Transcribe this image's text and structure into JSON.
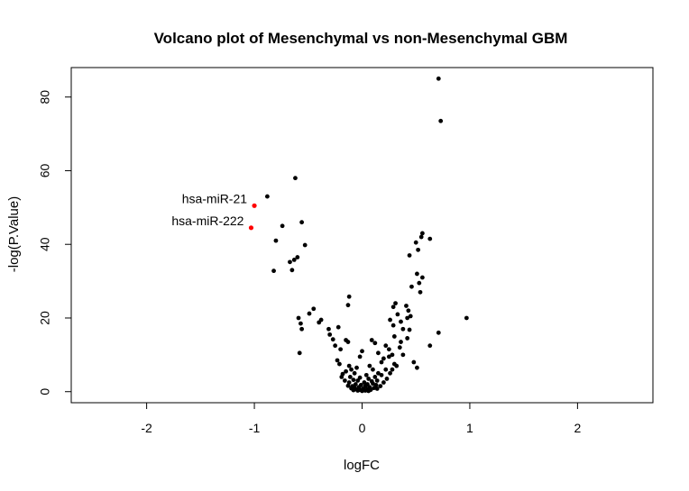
{
  "chart_data": {
    "type": "scatter",
    "title": "Volcano plot of Mesenchymal vs non-Mesenchymal GBM",
    "xlabel": "logFC",
    "ylabel": "-log(P.Value)",
    "xlim": [
      -2.7,
      2.7
    ],
    "ylim": [
      -3,
      88
    ],
    "xticks": [
      "-2",
      "-1",
      "0",
      "1",
      "2"
    ],
    "yticks": [
      "0",
      "20",
      "40",
      "60",
      "80"
    ],
    "grid": false,
    "highlight_color": "#ff0000",
    "point_color": "#000000",
    "points": [
      [
        0.71,
        85.0
      ],
      [
        0.73,
        73.5
      ],
      [
        -0.62,
        58.0
      ],
      [
        -0.88,
        53.0
      ],
      [
        -0.56,
        46.0
      ],
      [
        -0.74,
        45.0
      ],
      [
        0.56,
        43.0
      ],
      [
        0.55,
        42.0
      ],
      [
        0.63,
        41.5
      ],
      [
        0.5,
        40.5
      ],
      [
        -0.8,
        41.0
      ],
      [
        -0.53,
        39.8
      ],
      [
        0.52,
        38.5
      ],
      [
        0.44,
        37.0
      ],
      [
        -0.6,
        36.5
      ],
      [
        -0.63,
        35.8
      ],
      [
        -0.67,
        35.2
      ],
      [
        -0.65,
        33.0
      ],
      [
        -0.82,
        32.8
      ],
      [
        0.51,
        32.0
      ],
      [
        0.56,
        31.0
      ],
      [
        0.53,
        29.5
      ],
      [
        0.46,
        28.5
      ],
      [
        0.54,
        27.0
      ],
      [
        -0.12,
        25.8
      ],
      [
        0.31,
        24.0
      ],
      [
        -0.13,
        23.5
      ],
      [
        -0.45,
        22.5
      ],
      [
        0.29,
        23.0
      ],
      [
        0.41,
        23.3
      ],
      [
        0.43,
        22.0
      ],
      [
        -0.49,
        21.2
      ],
      [
        0.33,
        21.0
      ],
      [
        0.45,
        20.5
      ],
      [
        0.42,
        20.0
      ],
      [
        0.97,
        20.0
      ],
      [
        0.26,
        19.5
      ],
      [
        -0.59,
        20.0
      ],
      [
        0.36,
        19.0
      ],
      [
        -0.57,
        18.5
      ],
      [
        -0.4,
        18.8
      ],
      [
        -0.38,
        19.5
      ],
      [
        0.29,
        18.0
      ],
      [
        0.71,
        16.0
      ],
      [
        -0.56,
        17.0
      ],
      [
        -0.31,
        17.0
      ],
      [
        -0.22,
        17.5
      ],
      [
        0.38,
        17.0
      ],
      [
        0.44,
        16.8
      ],
      [
        0.3,
        15.0
      ],
      [
        -0.3,
        15.5
      ],
      [
        -0.27,
        14.2
      ],
      [
        0.42,
        14.5
      ],
      [
        -0.15,
        14.0
      ],
      [
        -0.13,
        13.5
      ],
      [
        0.09,
        14.0
      ],
      [
        0.12,
        13.2
      ],
      [
        0.36,
        13.5
      ],
      [
        0.63,
        12.5
      ],
      [
        -0.25,
        12.5
      ],
      [
        0.22,
        12.5
      ],
      [
        0.35,
        12.0
      ],
      [
        -0.2,
        11.5
      ],
      [
        0.0,
        11.0
      ],
      [
        -0.58,
        10.5
      ],
      [
        0.25,
        11.5
      ],
      [
        0.15,
        10.5
      ],
      [
        0.28,
        10.0
      ],
      [
        0.38,
        10.0
      ],
      [
        -0.02,
        9.5
      ],
      [
        0.2,
        9.0
      ],
      [
        0.25,
        9.5
      ],
      [
        0.48,
        8.0
      ],
      [
        -0.23,
        8.5
      ],
      [
        -0.21,
        7.5
      ],
      [
        0.18,
        8.0
      ],
      [
        0.07,
        7.0
      ],
      [
        0.3,
        7.5
      ],
      [
        0.51,
        6.5
      ],
      [
        -0.12,
        7.0
      ],
      [
        -0.1,
        6.0
      ],
      [
        -0.05,
        6.5
      ],
      [
        0.1,
        6.0
      ],
      [
        0.22,
        6.0
      ],
      [
        -0.15,
        5.5
      ],
      [
        0.15,
        5.0
      ],
      [
        0.28,
        6.0
      ],
      [
        -0.07,
        5.0
      ],
      [
        -0.18,
        4.8
      ],
      [
        0.04,
        4.5
      ],
      [
        0.12,
        4.0
      ],
      [
        -0.11,
        4.0
      ],
      [
        0.18,
        4.5
      ],
      [
        -0.02,
        3.8
      ],
      [
        0.06,
        3.5
      ],
      [
        -0.08,
        3.2
      ],
      [
        0.14,
        3.0
      ],
      [
        -0.04,
        3.0
      ],
      [
        0.09,
        2.8
      ],
      [
        -0.12,
        2.5
      ],
      [
        0.02,
        2.5
      ],
      [
        0.1,
        2.2
      ],
      [
        -0.06,
        2.0
      ],
      [
        0.05,
        2.0
      ],
      [
        -0.01,
        1.8
      ],
      [
        0.13,
        1.8
      ],
      [
        -0.09,
        1.5
      ],
      [
        0.03,
        1.5
      ],
      [
        0.07,
        1.2
      ],
      [
        -0.03,
        1.2
      ],
      [
        0.11,
        1.0
      ],
      [
        -0.07,
        1.0
      ],
      [
        0.01,
        0.8
      ],
      [
        0.05,
        0.7
      ],
      [
        -0.05,
        0.6
      ],
      [
        0.08,
        0.5
      ],
      [
        -0.02,
        0.5
      ],
      [
        0.03,
        0.3
      ],
      [
        -0.04,
        0.3
      ],
      [
        0.0,
        0.2
      ],
      [
        0.06,
        0.2
      ],
      [
        -0.08,
        0.4
      ],
      [
        0.14,
        0.8
      ],
      [
        -0.1,
        0.9
      ],
      [
        0.17,
        1.5
      ],
      [
        -0.13,
        1.6
      ],
      [
        0.2,
        2.5
      ],
      [
        -0.16,
        3.0
      ],
      [
        0.23,
        3.5
      ],
      [
        -0.19,
        4.0
      ],
      [
        0.26,
        5.0
      ],
      [
        0.32,
        7.0
      ]
    ],
    "highlighted": [
      {
        "label": "hsa-miR-21",
        "x": -1.0,
        "y": 50.5
      },
      {
        "label": "hsa-miR-222",
        "x": -1.03,
        "y": 44.5
      }
    ]
  }
}
